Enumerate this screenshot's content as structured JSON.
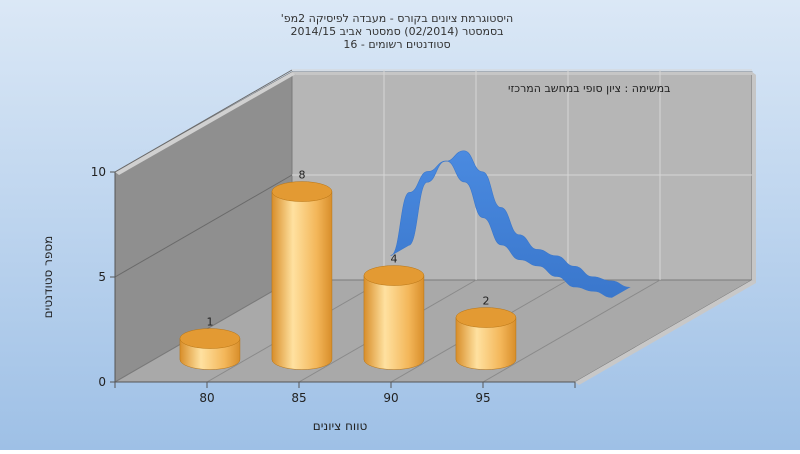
{
  "chart_data": {
    "type": "bar",
    "title_lines": [
      "היסטוגרמת ציונים בקורס - מעבדה לפיסיקה 2מפ'",
      "בסמסטר  (02/2014)  סמסטר אביב 2014/15",
      "סטודנטים רשומים - 16"
    ],
    "subtitle": "במשימה : ציון סופי במחשב המרכזי",
    "xlabel": "טווח ציונים",
    "ylabel": "מספר סטודנטים",
    "x_ticks": [
      "80",
      "85",
      "90",
      "95"
    ],
    "y_ticks": [
      "0",
      "5",
      "10"
    ],
    "ylim": [
      0,
      10
    ],
    "xlim": [
      75,
      100
    ],
    "bars": [
      {
        "x": 77.5,
        "value": 1,
        "label": "1"
      },
      {
        "x": 82.5,
        "value": 8,
        "label": "8"
      },
      {
        "x": 87.5,
        "value": 4,
        "label": "4"
      },
      {
        "x": 92.5,
        "value": 2,
        "label": "2"
      }
    ],
    "curve": {
      "x": [
        85,
        86,
        87,
        88,
        89,
        90,
        91,
        92,
        93,
        94,
        95,
        96,
        97
      ],
      "y": [
        3.5,
        6.5,
        7.5,
        8.0,
        7.0,
        5.3,
        4.0,
        3.3,
        3.0,
        2.5,
        2.0,
        1.8,
        1.5
      ]
    },
    "colors": {
      "background_top": "#dbe8f6",
      "background_bottom": "#9ec0e6",
      "bar_light": "#ffe1a0",
      "bar_mid": "#f3b659",
      "bar_dark": "#d88e2a",
      "bar_top": "#e39a33",
      "curve": "#3a77cc",
      "back_wall": "#b6b6b6",
      "side_wall": "#8f8f8f",
      "floor": "#a9a9a9"
    },
    "grid": true,
    "legend": "none"
  }
}
